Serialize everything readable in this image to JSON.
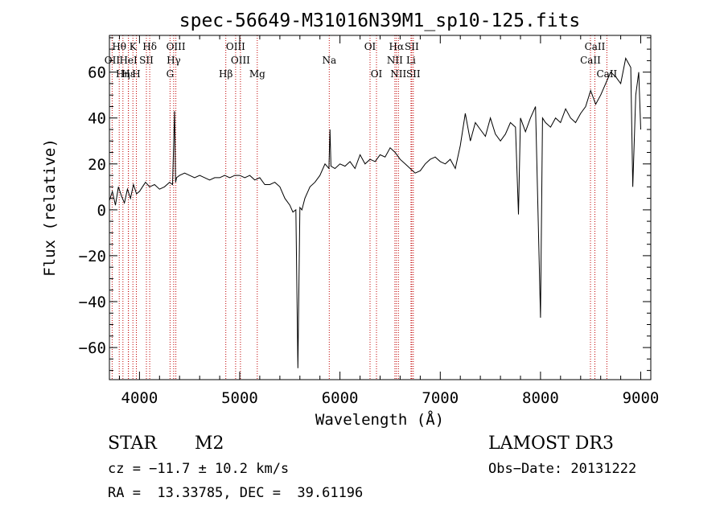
{
  "chart_data": {
    "type": "line",
    "title": "spec-56649-M31016N39M1_sp10-125.fits",
    "xlabel": "Wavelength (Å)",
    "ylabel": "Flux (relative)",
    "xlim": [
      3700,
      9100
    ],
    "ylim": [
      -74,
      76
    ],
    "xticks": [
      4000,
      5000,
      6000,
      7000,
      8000,
      9000
    ],
    "yticks": [
      -60,
      -40,
      -20,
      0,
      20,
      40,
      60
    ],
    "grid": false,
    "series": [
      {
        "x": [
          3700,
          3730,
          3760,
          3790,
          3820,
          3850,
          3880,
          3910,
          3940,
          3970,
          4000,
          4030,
          4060,
          4100,
          4150,
          4200,
          4250,
          4300,
          4330,
          4350,
          4360,
          4370,
          4400,
          4450,
          4500,
          4550,
          4600,
          4650,
          4700,
          4750,
          4800,
          4850,
          4900,
          4950,
          5000,
          5050,
          5100,
          5150,
          5200,
          5250,
          5300,
          5350,
          5400,
          5450,
          5500,
          5530,
          5560,
          5580,
          5600,
          5620,
          5650,
          5700,
          5750,
          5800,
          5850,
          5890,
          5900,
          5910,
          5950,
          6000,
          6050,
          6100,
          6150,
          6200,
          6250,
          6300,
          6350,
          6400,
          6450,
          6500,
          6550,
          6600,
          6650,
          6700,
          6750,
          6800,
          6850,
          6900,
          6950,
          7000,
          7050,
          7100,
          7150,
          7200,
          7250,
          7300,
          7350,
          7400,
          7450,
          7500,
          7550,
          7600,
          7650,
          7700,
          7750,
          7780,
          7800,
          7850,
          7900,
          7950,
          8000,
          8020,
          8050,
          8100,
          8150,
          8200,
          8250,
          8300,
          8350,
          8400,
          8450,
          8500,
          8550,
          8600,
          8650,
          8700,
          8750,
          8800,
          8850,
          8900,
          8920,
          8950,
          8980,
          9000
        ],
        "y": [
          4,
          8,
          2,
          10,
          6,
          3,
          9,
          5,
          11,
          7,
          8,
          10,
          12,
          10,
          11,
          9,
          10,
          12,
          11,
          43,
          12,
          14,
          15,
          16,
          15,
          14,
          15,
          14,
          13,
          14,
          14,
          15,
          14,
          15,
          15,
          14,
          15,
          13,
          14,
          11,
          11,
          12,
          10,
          5,
          2,
          -1,
          0,
          -69,
          1,
          0,
          5,
          10,
          12,
          15,
          20,
          18,
          35,
          19,
          18,
          20,
          19,
          21,
          18,
          24,
          20,
          22,
          21,
          24,
          23,
          27,
          25,
          22,
          20,
          18,
          16,
          17,
          20,
          22,
          23,
          21,
          20,
          22,
          18,
          28,
          42,
          30,
          38,
          35,
          32,
          40,
          33,
          30,
          33,
          38,
          36,
          -2,
          40,
          34,
          40,
          45,
          -47,
          40,
          38,
          36,
          40,
          38,
          44,
          40,
          38,
          42,
          45,
          52,
          46,
          50,
          55,
          60,
          58,
          55,
          66,
          62,
          10,
          50,
          60,
          35
        ]
      }
    ],
    "lines": [
      {
        "label": "Hθ",
        "x": 3798,
        "row": 0
      },
      {
        "label": "OII",
        "x": 3727,
        "row": 1
      },
      {
        "label": "Hη",
        "x": 3835,
        "row": 2
      },
      {
        "label": "Hε",
        "x": 3889,
        "row": 2
      },
      {
        "label": "HeI",
        "x": 3889,
        "row": 1
      },
      {
        "label": "K",
        "x": 3934,
        "row": 0
      },
      {
        "label": "SII",
        "x": 4069,
        "row": 1
      },
      {
        "label": "H",
        "x": 3969,
        "row": 2
      },
      {
        "label": "Hδ",
        "x": 4102,
        "row": 0
      },
      {
        "label": "OIII",
        "x": 4363,
        "row": 0
      },
      {
        "label": "Hγ",
        "x": 4341,
        "row": 1
      },
      {
        "label": "G",
        "x": 4305,
        "row": 2
      },
      {
        "label": "OIII",
        "x": 4959,
        "row": 0
      },
      {
        "label": "OIII",
        "x": 5007,
        "row": 1
      },
      {
        "label": "Hβ",
        "x": 4861,
        "row": 2
      },
      {
        "label": "Mg",
        "x": 5175,
        "row": 2
      },
      {
        "label": "Na",
        "x": 5893,
        "row": 1
      },
      {
        "label": "OI",
        "x": 6300,
        "row": 0
      },
      {
        "label": "OI",
        "x": 6364,
        "row": 2
      },
      {
        "label": "Hα",
        "x": 6563,
        "row": 0
      },
      {
        "label": "NII",
        "x": 6548,
        "row": 1
      },
      {
        "label": "NII",
        "x": 6583,
        "row": 2
      },
      {
        "label": "SII",
        "x": 6716,
        "row": 0
      },
      {
        "label": "Li",
        "x": 6708,
        "row": 1
      },
      {
        "label": "SII",
        "x": 6731,
        "row": 2
      },
      {
        "label": "CaII",
        "x": 8542,
        "row": 0
      },
      {
        "label": "CaII",
        "x": 8498,
        "row": 1
      },
      {
        "label": "CaII",
        "x": 8662,
        "row": 2
      }
    ],
    "colors": {
      "spectrum": "#000000",
      "lines": "#c00000"
    }
  },
  "info": {
    "class": "STAR",
    "subclass": "M2",
    "survey": "LAMOST DR3",
    "cz": "cz = −11.7 ± 10.2 km/s",
    "obs_date": "Obs−Date: 20131222",
    "radec": "RA =  13.33785, DEC =  39.61196"
  }
}
